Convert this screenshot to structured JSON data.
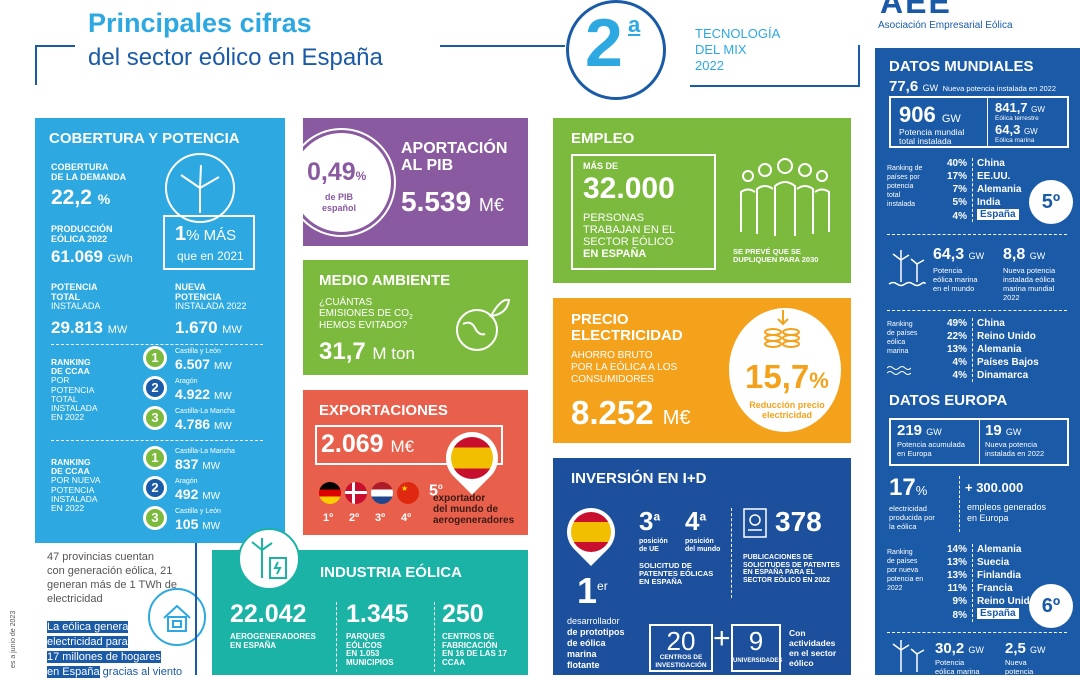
{
  "header": {
    "title_line1": "Principales cifras",
    "title_line2": "del sector eólico en España",
    "rank_digit": "2",
    "rank_suffix": "a",
    "rank_line1": "TECNOLOGÍA",
    "rank_line2": "DEL MIX",
    "rank_year": "2022",
    "org_logo": "AEE",
    "org_name": "Asociación Empresarial Eólica"
  },
  "colors": {
    "blue": "#2da8e0",
    "navy": "#1a5aa6",
    "purple": "#8a5aa0",
    "green": "#7cba3d",
    "red": "#e8604c",
    "orange": "#f4a21c",
    "teal": "#1bb3a6",
    "dark": "#1c4f9c"
  },
  "cobertura": {
    "title": "COBERTURA Y POTENCIA",
    "cov_label1": "COBERTURA",
    "cov_label2": "DE LA DEMANDA",
    "cov_value": "22,2",
    "cov_unit": "%",
    "prod_label1": "PRODUCCIÓN",
    "prod_label2": "EÓLICA 2022",
    "prod_value": "61.069",
    "prod_unit": "GWh",
    "more_value": "1",
    "more_unit": "% MÁS",
    "more_label": "que en 2021",
    "pot_label1": "POTENCIA",
    "pot_label2": "TOTAL",
    "pot_label3": "INSTALADA",
    "pot_value": "29.813",
    "pot_unit": "MW",
    "new_label1": "NUEVA",
    "new_label2": "POTENCIA",
    "new_label3": "INSTALADA 2022",
    "new_value": "1.670",
    "new_unit": "MW",
    "rank1_label": [
      "RANKING",
      "DE CCAA",
      "POR",
      "POTENCIA",
      "TOTAL",
      "INSTALADA",
      "EN 2022"
    ],
    "rank1": [
      {
        "pos": "1",
        "region": "Castilla y León",
        "value": "6.507",
        "unit": "MW"
      },
      {
        "pos": "2",
        "region": "Aragón",
        "value": "4.922",
        "unit": "MW"
      },
      {
        "pos": "3",
        "region": "Castilla-La Mancha",
        "value": "4.786",
        "unit": "MW"
      }
    ],
    "rank2_label": [
      "RANKING",
      "DE CCAA",
      "POR NUEVA",
      "POTENCIA",
      "INSTALADA",
      "EN 2022"
    ],
    "rank2": [
      {
        "pos": "1",
        "region": "Castilla-La Mancha",
        "value": "837",
        "unit": "MW"
      },
      {
        "pos": "2",
        "region": "Aragón",
        "value": "492",
        "unit": "MW"
      },
      {
        "pos": "3",
        "region": "Castilla y León",
        "value": "105",
        "unit": "MW"
      }
    ]
  },
  "provincias": {
    "text1": "47 provincias cuentan",
    "text2": "con generación eólica, 21",
    "text3": "generan más de 1 TWh de",
    "text4": "electricidad",
    "hl1": "La eólica genera",
    "hl2": "electricidad para",
    "hl3": "17 millones de hogares",
    "hl4": "en España",
    "hl4b": " gracias al viento",
    "side_note": "es a junio de 2023"
  },
  "pib": {
    "value": "0,49",
    "unit": "%",
    "label1": "de PIB",
    "label2": "español",
    "title1": "APORTACIÓN",
    "title2": "AL PIB",
    "amount": "5.539",
    "amount_unit": "M€"
  },
  "ambiente": {
    "title": "MEDIO AMBIENTE",
    "q1": "¿CUÁNTAS",
    "q2": "EMISIONES DE CO",
    "q2_sub": "2",
    "q3": "HEMOS EVITADO?",
    "value": "31,7",
    "unit": "M ton"
  },
  "export": {
    "title": "EXPORTACIONES",
    "value": "2.069",
    "unit": "M€",
    "ranks": [
      "1º",
      "2º",
      "3º",
      "4º"
    ],
    "pos": "5",
    "pos_sup": "o",
    "label1": "exportador",
    "label2": "del mundo de",
    "label3": "aerogeneradores"
  },
  "industria": {
    "title": "INDUSTRIA EÓLICA",
    "stats": [
      {
        "value": "22.042",
        "l1": "AEROGENERADORES",
        "l2": "EN ESPAÑA",
        "l3": ""
      },
      {
        "value": "1.345",
        "l1": "PARQUES",
        "l2": "EÓLICOS",
        "l3": "EN 1.053",
        "l4": "MUNICIPIOS"
      },
      {
        "value": "250",
        "l1": "CENTROS DE",
        "l2": "FABRICACIÓN",
        "l3": "EN 16 DE LAS 17",
        "l4": "CCAA"
      }
    ]
  },
  "empleo": {
    "title": "EMPLEO",
    "pre": "MÁS DE",
    "value": "32.000",
    "l1": "PERSONAS",
    "l2": "TRABAJAN EN EL",
    "l3": "SECTOR EÓLICO",
    "l4": "EN ESPAÑA",
    "note1": "SE PREVÉ QUE SE",
    "note2": "DUPLIQUEN PARA 2030"
  },
  "precio": {
    "title1": "PRECIO",
    "title2": "ELECTRICIDAD",
    "l1": "AHORRO BRUTO",
    "l2": "POR LA EÓLICA A LOS",
    "l3": "CONSUMIDORES",
    "value": "8.252",
    "unit": "M€",
    "pct": "15,7",
    "pct_unit": "%",
    "pct_l1": "Reducción precio",
    "pct_l2": "electricidad"
  },
  "inversion": {
    "title": "INVERSIÓN EN I+D",
    "first": "1",
    "first_sup": "er",
    "dev1": "desarrollador",
    "dev2": "de prototipos",
    "dev3": "de eólica",
    "dev4": "marina",
    "dev5": "flotante",
    "p1": "3",
    "p1_sup": "a",
    "p1_l1": "posición",
    "p1_l2": "de UE",
    "p2": "4",
    "p2_sup": "a",
    "p2_l1": "posición",
    "p2_l2": "del mundo",
    "sol1": "SOLICITUD DE",
    "sol2": "PATENTES EÓLICAS",
    "sol3": "EN ESPAÑA",
    "pat": "378",
    "pub1": "PUBLICACIONES DE",
    "pub2": "SOLICITUDES DE PATENTES",
    "pub3": "EN ESPAÑA PARA EL",
    "pub4": "SECTOR EÓLICO EN 2022",
    "c20": "20",
    "c20_l1": "CENTROS DE",
    "c20_l2": "INVESTIGACIÓN",
    "plus": "+",
    "c9": "9",
    "c9_l1": "UNIVERSIDADES",
    "act1": "Con",
    "act2": "actividades",
    "act3": "en el sector",
    "act4": "eólico"
  },
  "mundo": {
    "title": "DATOS MUNDIALES",
    "new_val": "77,6",
    "new_unit": "GW",
    "new_label": "Nueva potencia instalada en 2022",
    "tot_val": "906",
    "tot_unit": "GW",
    "tot_l1": "Potencia mundial",
    "tot_l2": "total instalada",
    "ter_val": "841,7",
    "ter_unit": "GW",
    "ter_l": "Eólica terrestre",
    "mar_val": "64,3",
    "mar_unit": "GW",
    "mar_l": "Eólica marina",
    "rank_label": [
      "Ranking de",
      "países por",
      "potencia",
      "total",
      "instalada"
    ],
    "rank": [
      {
        "pct": "40%",
        "country": "China"
      },
      {
        "pct": "17%",
        "country": "EE.UU."
      },
      {
        "pct": "7%",
        "country": "Alemania"
      },
      {
        "pct": "5%",
        "country": "India"
      },
      {
        "pct": "4%",
        "country": "España"
      }
    ],
    "spain_pos": "5º",
    "off_val": "64,3",
    "off_unit": "GW",
    "off_l1": "Potencia",
    "off_l2": "eólica marina",
    "off_l3": "en el mundo",
    "offnew_val": "8,8",
    "offnew_unit": "GW",
    "offnew_l1": "Nueva potencia",
    "offnew_l2": "instalada eólica",
    "offnew_l3": "marina mundial",
    "offnew_l4": "2022",
    "mrank_label": [
      "Ranking",
      "de países",
      "eólica",
      "marina"
    ],
    "mrank": [
      {
        "pct": "49%",
        "country": "China"
      },
      {
        "pct": "22%",
        "country": "Reino Unido"
      },
      {
        "pct": "13%",
        "country": "Alemania"
      },
      {
        "pct": "4%",
        "country": "Países Bajos"
      },
      {
        "pct": "4%",
        "country": "Dinamarca"
      }
    ]
  },
  "europa": {
    "title": "DATOS EUROPA",
    "acc_val": "219",
    "acc_unit": "GW",
    "acc_l1": "Potencia acumulada",
    "acc_l2": "en Europa",
    "new_val": "19",
    "new_unit": "GW",
    "new_l1": "Nueva potencia",
    "new_l2": "instalada en 2022",
    "share_val": "17",
    "share_unit": "%",
    "share_l1": "electricidad",
    "share_l2": "producida por",
    "share_l3": "la eólica",
    "jobs_val": "+ 300.000",
    "jobs_l1": "empleos generados",
    "jobs_l2": "en Europa",
    "rank_label": [
      "Ranking",
      "de países",
      "por nueva",
      "potencia en",
      "2022"
    ],
    "rank": [
      {
        "pct": "14%",
        "country": "Alemania"
      },
      {
        "pct": "13%",
        "country": "Suecia"
      },
      {
        "pct": "13%",
        "country": "Finlandia"
      },
      {
        "pct": "11%",
        "country": "Francia"
      },
      {
        "pct": "9%",
        "country": "Reino Unido"
      },
      {
        "pct": "8%",
        "country": "España"
      }
    ],
    "spain_pos": "6º",
    "off_val": "30,2",
    "off_unit": "GW",
    "off_l1": "Potencia",
    "off_l2": "eólica marina",
    "offnew_val": "2,5",
    "offnew_unit": "GW",
    "offnew_l1": "Nueva",
    "offnew_l2": "potencia"
  }
}
